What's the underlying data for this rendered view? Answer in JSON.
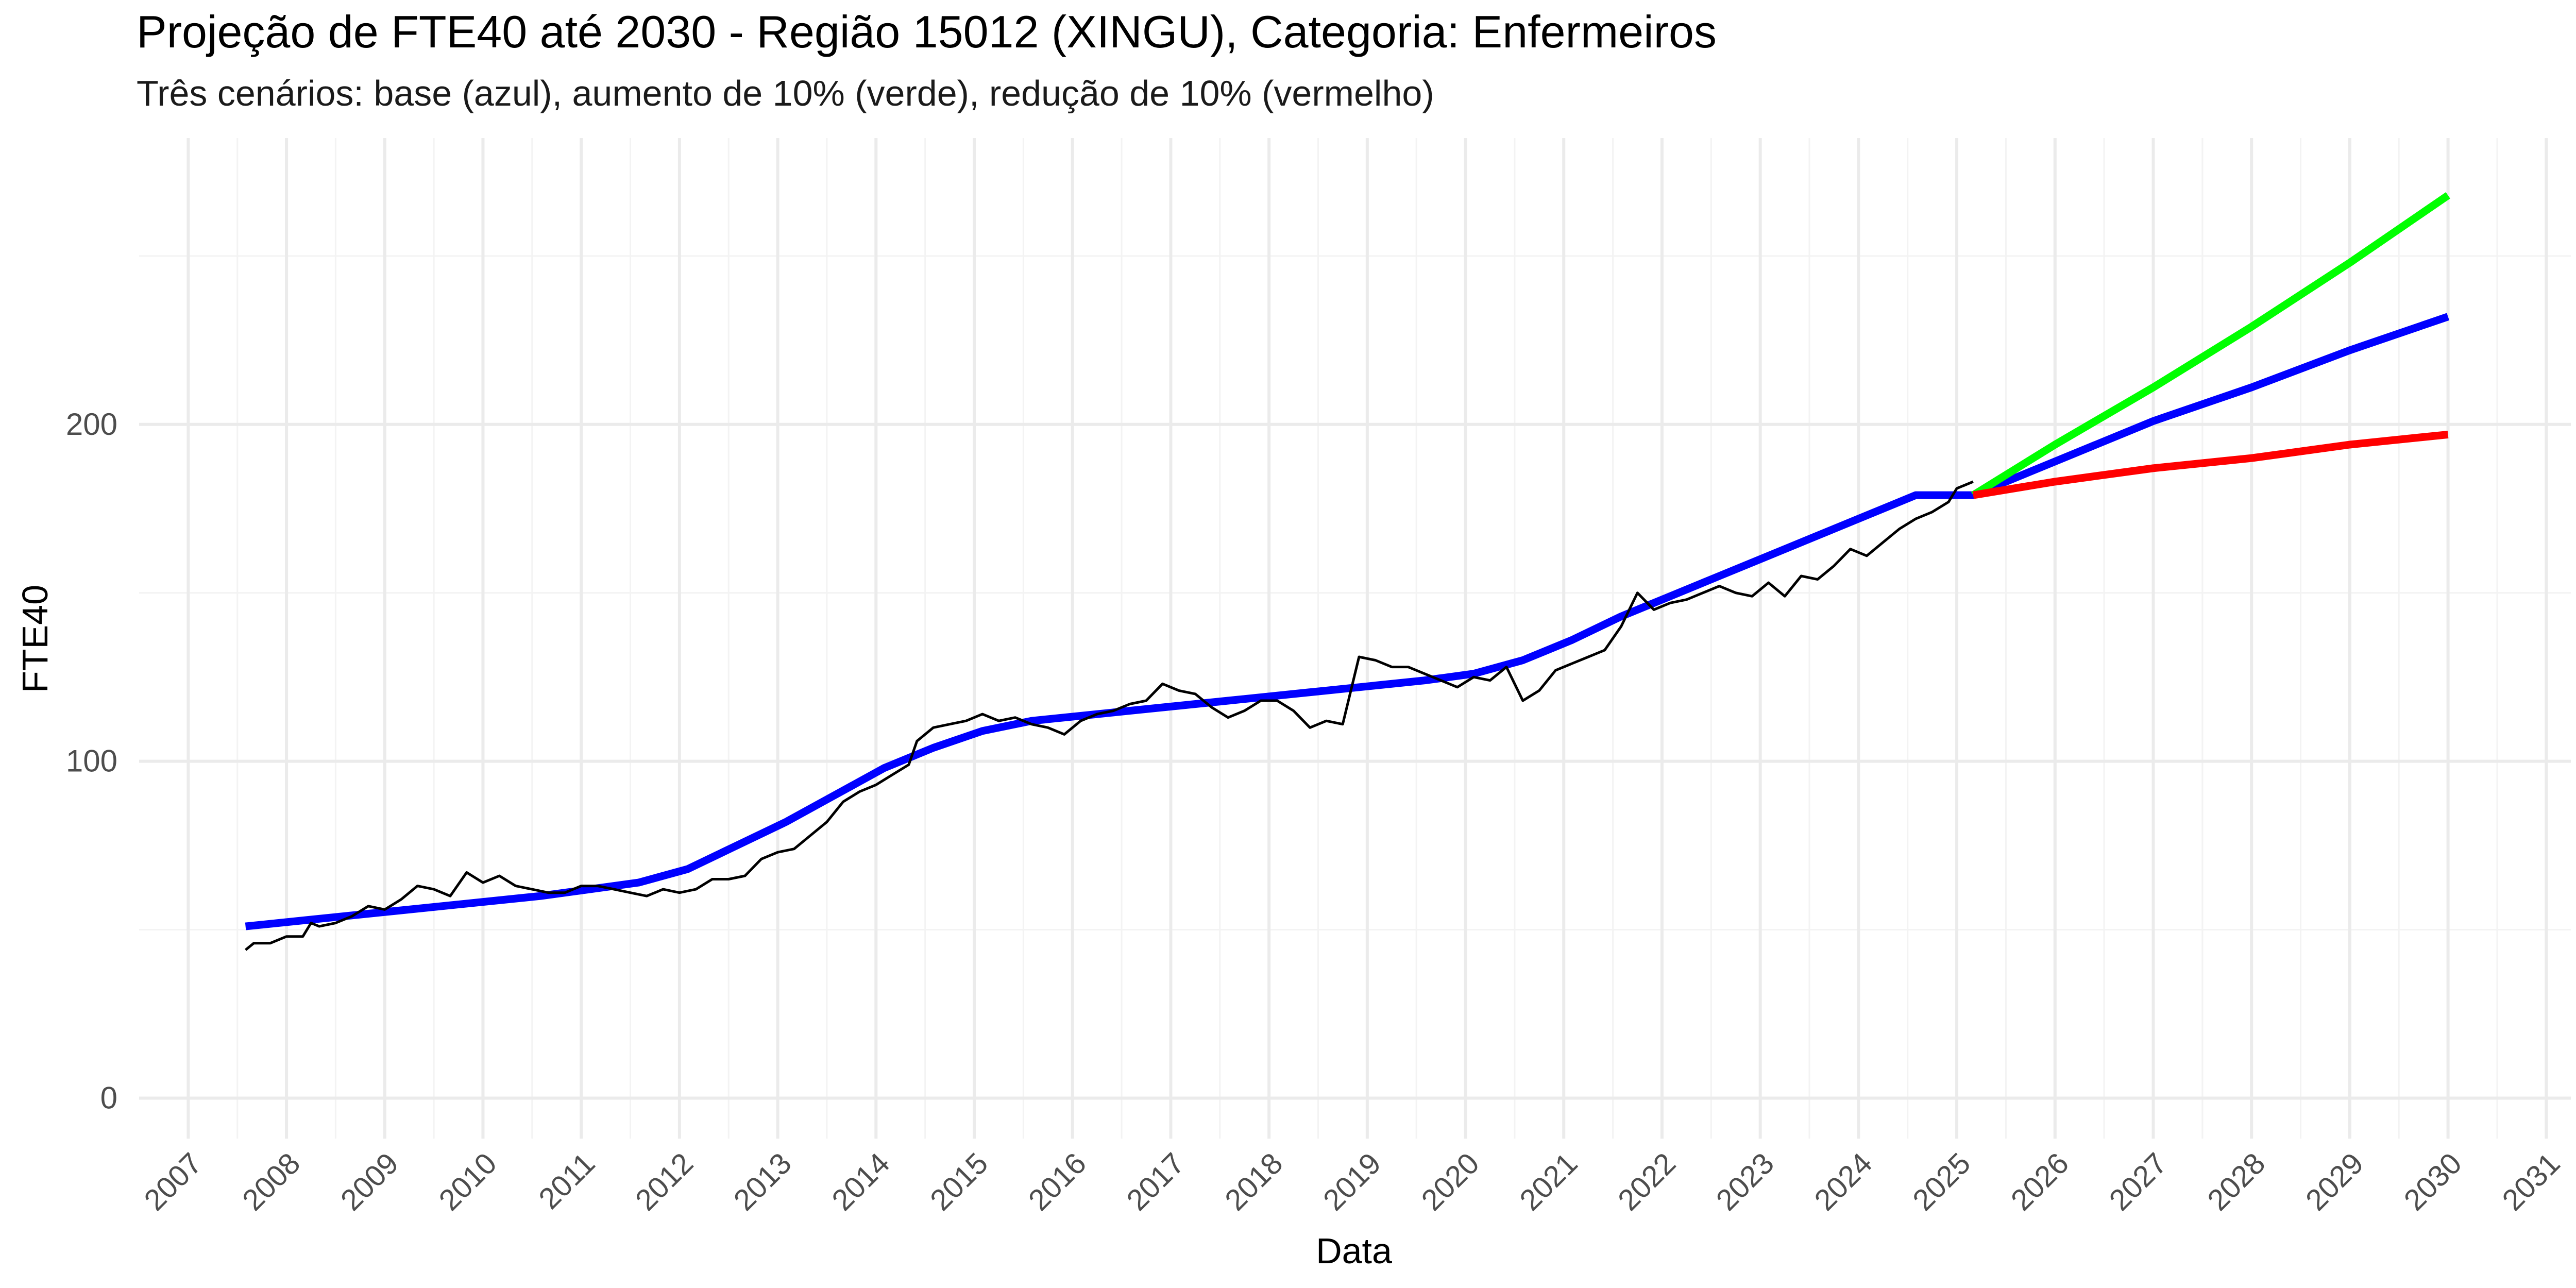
{
  "chart_data": {
    "type": "line",
    "title": "Projeção de FTE40 até 2030 - Região 15012 (XINGU), Categoria: Enfermeiros",
    "subtitle": "Três cenários: base (azul), aumento de 10% (verde), redução de 10% (vermelho)",
    "xlabel": "Data",
    "ylabel": "FTE40",
    "xlim": [
      "2006-07-01",
      "2031-04-01"
    ],
    "ylim": [
      -12,
      285
    ],
    "x_ticks": [
      "2007",
      "2008",
      "2009",
      "2010",
      "2011",
      "2012",
      "2013",
      "2014",
      "2015",
      "2016",
      "2017",
      "2018",
      "2019",
      "2020",
      "2021",
      "2022",
      "2023",
      "2024",
      "2025",
      "2026",
      "2027",
      "2028",
      "2029",
      "2030",
      "2031"
    ],
    "y_ticks": [
      "0",
      "100",
      "200"
    ],
    "grid": true,
    "legend": "none",
    "colors": {
      "observed": "#000000",
      "base": "#0000FF",
      "increase": "#00FF00",
      "decrease": "#FF0000",
      "grid_major": "#EBEBEB",
      "grid_minor": "#F3F3F3",
      "text": "#000000",
      "tick_text": "#4D4D4D"
    },
    "series": [
      {
        "color": "#000000",
        "points": [
          [
            "2007-08-01",
            44
          ],
          [
            "2007-09-01",
            46
          ],
          [
            "2007-11-01",
            46
          ],
          [
            "2008-01-01",
            48
          ],
          [
            "2008-03-01",
            48
          ],
          [
            "2008-04-01",
            52
          ],
          [
            "2008-05-01",
            51
          ],
          [
            "2008-07-01",
            52
          ],
          [
            "2008-09-01",
            54
          ],
          [
            "2008-11-01",
            57
          ],
          [
            "2009-01-01",
            56
          ],
          [
            "2009-03-01",
            59
          ],
          [
            "2009-05-01",
            63
          ],
          [
            "2009-07-01",
            62
          ],
          [
            "2009-09-01",
            60
          ],
          [
            "2009-11-01",
            67
          ],
          [
            "2010-01-01",
            64
          ],
          [
            "2010-03-01",
            66
          ],
          [
            "2010-05-01",
            63
          ],
          [
            "2010-07-01",
            62
          ],
          [
            "2010-09-01",
            61
          ],
          [
            "2010-11-01",
            61
          ],
          [
            "2011-01-01",
            63
          ],
          [
            "2011-03-01",
            63
          ],
          [
            "2011-05-01",
            62
          ],
          [
            "2011-07-01",
            61
          ],
          [
            "2011-09-01",
            60
          ],
          [
            "2011-11-01",
            62
          ],
          [
            "2012-01-01",
            61
          ],
          [
            "2012-03-01",
            62
          ],
          [
            "2012-05-01",
            65
          ],
          [
            "2012-07-01",
            65
          ],
          [
            "2012-09-01",
            66
          ],
          [
            "2012-11-01",
            71
          ],
          [
            "2013-01-01",
            73
          ],
          [
            "2013-03-01",
            74
          ],
          [
            "2013-05-01",
            78
          ],
          [
            "2013-07-01",
            82
          ],
          [
            "2013-09-01",
            88
          ],
          [
            "2013-11-01",
            91
          ],
          [
            "2014-01-01",
            93
          ],
          [
            "2014-03-01",
            96
          ],
          [
            "2014-05-01",
            99
          ],
          [
            "2014-06-01",
            106
          ],
          [
            "2014-08-01",
            110
          ],
          [
            "2014-10-01",
            111
          ],
          [
            "2014-12-01",
            112
          ],
          [
            "2015-02-01",
            114
          ],
          [
            "2015-04-01",
            112
          ],
          [
            "2015-06-01",
            113
          ],
          [
            "2015-08-01",
            111
          ],
          [
            "2015-10-01",
            110
          ],
          [
            "2015-12-01",
            108
          ],
          [
            "2016-02-01",
            112
          ],
          [
            "2016-04-01",
            114
          ],
          [
            "2016-06-01",
            115
          ],
          [
            "2016-08-01",
            117
          ],
          [
            "2016-10-01",
            118
          ],
          [
            "2016-12-01",
            123
          ],
          [
            "2017-02-01",
            121
          ],
          [
            "2017-04-01",
            120
          ],
          [
            "2017-06-01",
            116
          ],
          [
            "2017-08-01",
            113
          ],
          [
            "2017-10-01",
            115
          ],
          [
            "2017-12-01",
            118
          ],
          [
            "2018-02-01",
            118
          ],
          [
            "2018-04-01",
            115
          ],
          [
            "2018-06-01",
            110
          ],
          [
            "2018-08-01",
            112
          ],
          [
            "2018-10-01",
            111
          ],
          [
            "2018-12-01",
            131
          ],
          [
            "2019-02-01",
            130
          ],
          [
            "2019-04-01",
            128
          ],
          [
            "2019-06-01",
            128
          ],
          [
            "2019-08-01",
            126
          ],
          [
            "2019-10-01",
            124
          ],
          [
            "2019-12-01",
            122
          ],
          [
            "2020-02-01",
            125
          ],
          [
            "2020-04-01",
            124
          ],
          [
            "2020-06-01",
            128
          ],
          [
            "2020-08-01",
            118
          ],
          [
            "2020-10-01",
            121
          ],
          [
            "2020-12-01",
            127
          ],
          [
            "2021-02-01",
            129
          ],
          [
            "2021-04-01",
            131
          ],
          [
            "2021-06-01",
            133
          ],
          [
            "2021-08-01",
            140
          ],
          [
            "2021-10-01",
            150
          ],
          [
            "2021-12-01",
            145
          ],
          [
            "2022-02-01",
            147
          ],
          [
            "2022-04-01",
            148
          ],
          [
            "2022-06-01",
            150
          ],
          [
            "2022-08-01",
            152
          ],
          [
            "2022-10-01",
            150
          ],
          [
            "2022-12-01",
            149
          ],
          [
            "2023-02-01",
            153
          ],
          [
            "2023-04-01",
            149
          ],
          [
            "2023-06-01",
            155
          ],
          [
            "2023-08-01",
            154
          ],
          [
            "2023-10-01",
            158
          ],
          [
            "2023-12-01",
            163
          ],
          [
            "2024-02-01",
            161
          ],
          [
            "2024-04-01",
            165
          ],
          [
            "2024-06-01",
            169
          ],
          [
            "2024-08-01",
            172
          ],
          [
            "2024-10-01",
            174
          ],
          [
            "2024-12-01",
            177
          ],
          [
            "2025-01-01",
            181
          ],
          [
            "2025-02-01",
            182
          ],
          [
            "2025-03-01",
            183
          ]
        ]
      },
      {
        "color": "#0000FF",
        "points": [
          [
            "2007-08-01",
            51
          ],
          [
            "2008-08-01",
            54
          ],
          [
            "2009-08-01",
            57
          ],
          [
            "2010-08-01",
            60
          ],
          [
            "2011-08-01",
            64
          ],
          [
            "2012-02-01",
            68
          ],
          [
            "2012-08-01",
            75
          ],
          [
            "2013-02-01",
            82
          ],
          [
            "2013-08-01",
            90
          ],
          [
            "2014-02-01",
            98
          ],
          [
            "2014-08-01",
            104
          ],
          [
            "2015-02-01",
            109
          ],
          [
            "2015-08-01",
            112
          ],
          [
            "2016-08-01",
            115
          ],
          [
            "2017-08-01",
            118
          ],
          [
            "2018-08-01",
            121
          ],
          [
            "2019-08-01",
            124
          ],
          [
            "2020-02-01",
            126
          ],
          [
            "2020-08-01",
            130
          ],
          [
            "2021-02-01",
            136
          ],
          [
            "2021-08-01",
            143
          ],
          [
            "2022-02-01",
            149
          ],
          [
            "2022-08-01",
            155
          ],
          [
            "2023-02-01",
            161
          ],
          [
            "2023-08-01",
            167
          ],
          [
            "2024-02-01",
            173
          ],
          [
            "2024-08-01",
            179
          ],
          [
            "2025-03-01",
            179
          ],
          [
            "2026-02-01",
            190
          ],
          [
            "2027-01-01",
            201
          ],
          [
            "2028-01-01",
            211
          ],
          [
            "2029-01-01",
            222
          ],
          [
            "2030-01-01",
            232
          ]
        ]
      },
      {
        "color": "#00FF00",
        "points": [
          [
            "2025-03-01",
            179
          ],
          [
            "2026-01-01",
            194
          ],
          [
            "2027-01-01",
            211
          ],
          [
            "2028-01-01",
            229
          ],
          [
            "2029-01-01",
            248
          ],
          [
            "2030-01-01",
            268
          ]
        ]
      },
      {
        "color": "#FF0000",
        "points": [
          [
            "2025-03-01",
            179
          ],
          [
            "2026-01-01",
            183
          ],
          [
            "2027-01-01",
            187
          ],
          [
            "2028-01-01",
            190
          ],
          [
            "2029-01-01",
            194
          ],
          [
            "2030-01-01",
            197
          ]
        ]
      }
    ]
  }
}
